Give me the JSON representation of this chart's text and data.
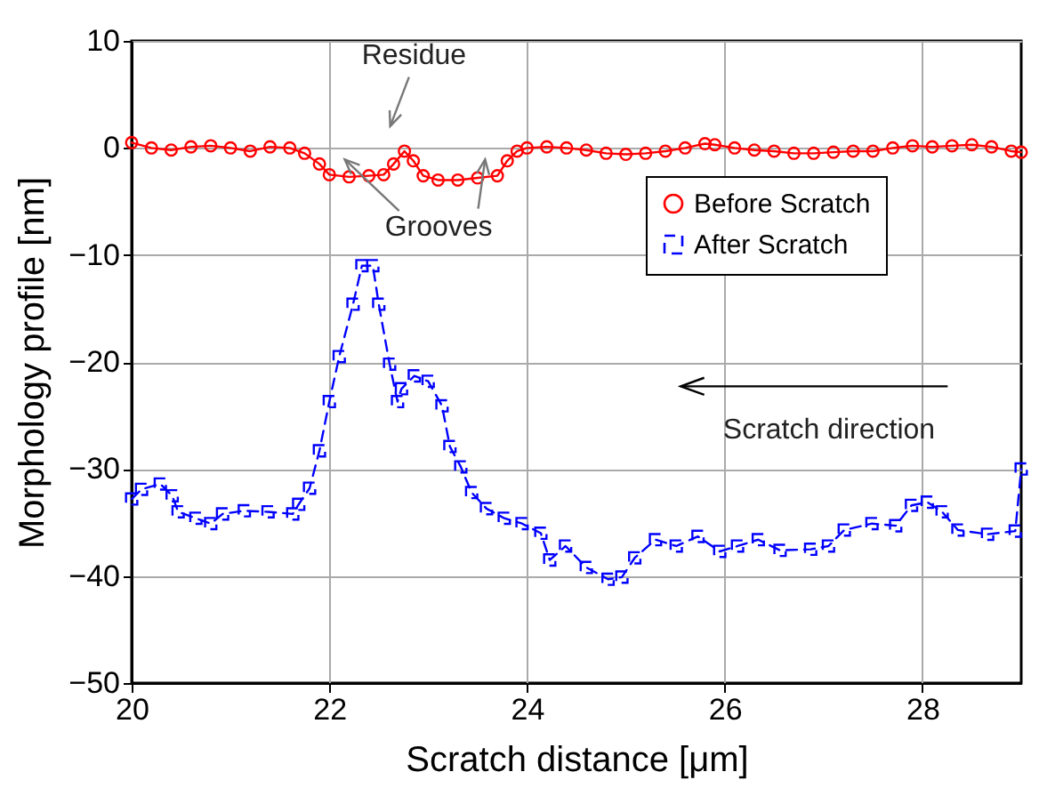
{
  "chart_data": {
    "type": "line",
    "xlabel": "Scratch distance [μm]",
    "ylabel": "Morphology profile [nm]",
    "xlim": [
      20,
      29
    ],
    "xticks": [
      20,
      22,
      24,
      26,
      28
    ],
    "ylim": [
      -50,
      10
    ],
    "yticks": [
      -50,
      -40,
      -30,
      -20,
      -10,
      0,
      10
    ],
    "grid": true,
    "legend": "top right",
    "series": [
      {
        "name": "Before Scratch",
        "color": "#ff0000",
        "marker": "circle",
        "line_style": "solid",
        "x": [
          20.0,
          20.2,
          20.4,
          20.6,
          20.8,
          21.0,
          21.2,
          21.4,
          21.6,
          21.75,
          21.9,
          22.0,
          22.2,
          22.4,
          22.55,
          22.65,
          22.76,
          22.85,
          22.95,
          23.1,
          23.3,
          23.5,
          23.7,
          23.8,
          23.9,
          24.0,
          24.2,
          24.4,
          24.6,
          24.8,
          25.0,
          25.2,
          25.4,
          25.6,
          25.8,
          25.9,
          26.1,
          26.3,
          26.5,
          26.7,
          26.9,
          27.1,
          27.3,
          27.5,
          27.7,
          27.9,
          28.1,
          28.3,
          28.5,
          28.7,
          28.9,
          29.0
        ],
        "values": [
          0.5,
          0.0,
          -0.2,
          0.1,
          0.2,
          0.0,
          -0.3,
          0.1,
          0.0,
          -0.5,
          -1.5,
          -2.5,
          -2.7,
          -2.6,
          -2.5,
          -1.5,
          -0.3,
          -1.2,
          -2.6,
          -3.0,
          -3.0,
          -2.8,
          -2.6,
          -1.2,
          -0.3,
          0.0,
          0.1,
          0.0,
          -0.2,
          -0.5,
          -0.6,
          -0.5,
          -0.3,
          0.0,
          0.4,
          0.3,
          0.0,
          -0.2,
          -0.3,
          -0.5,
          -0.5,
          -0.4,
          -0.3,
          -0.3,
          0.0,
          0.2,
          0.1,
          0.2,
          0.3,
          0.1,
          -0.3,
          -0.4
        ]
      },
      {
        "name": "After Scratch",
        "color": "#0000ff",
        "marker": "square",
        "line_style": "dashed",
        "x": [
          20.0,
          20.1,
          20.29,
          20.41,
          20.47,
          20.65,
          20.8,
          20.92,
          21.14,
          21.38,
          21.63,
          21.69,
          21.8,
          21.9,
          22.0,
          22.1,
          22.24,
          22.33,
          22.44,
          22.5,
          22.61,
          22.69,
          22.73,
          22.86,
          23.0,
          23.14,
          23.22,
          23.33,
          23.44,
          23.59,
          23.77,
          23.95,
          24.14,
          24.23,
          24.39,
          24.6,
          24.82,
          24.96,
          25.09,
          25.3,
          25.51,
          25.73,
          25.95,
          26.13,
          26.34,
          26.56,
          26.87,
          27.05,
          27.21,
          27.49,
          27.73,
          27.89,
          28.05,
          28.2,
          28.36,
          28.66,
          28.94,
          29.0
        ],
        "values": [
          -32.8,
          -31.9,
          -31.4,
          -32.5,
          -34.0,
          -34.6,
          -35.1,
          -34.2,
          -33.9,
          -34.0,
          -34.2,
          -33.3,
          -31.8,
          -28.3,
          -23.7,
          -19.5,
          -14.6,
          -11.0,
          -11.0,
          -14.6,
          -20.2,
          -23.7,
          -22.5,
          -21.3,
          -21.8,
          -24.1,
          -27.9,
          -29.8,
          -32.2,
          -33.7,
          -34.6,
          -35.1,
          -36.0,
          -38.5,
          -37.2,
          -39.2,
          -40.3,
          -40.1,
          -38.3,
          -36.6,
          -37.2,
          -36.3,
          -37.7,
          -37.2,
          -36.6,
          -37.6,
          -37.5,
          -37.2,
          -35.7,
          -35.1,
          -35.3,
          -33.4,
          -33.1,
          -34.0,
          -35.7,
          -36.1,
          -35.8,
          -30.0
        ]
      }
    ],
    "annotations": [
      {
        "text": "Residue",
        "x": 22.76,
        "y": -0.3
      },
      "Grooves",
      "Scratch direction"
    ]
  }
}
